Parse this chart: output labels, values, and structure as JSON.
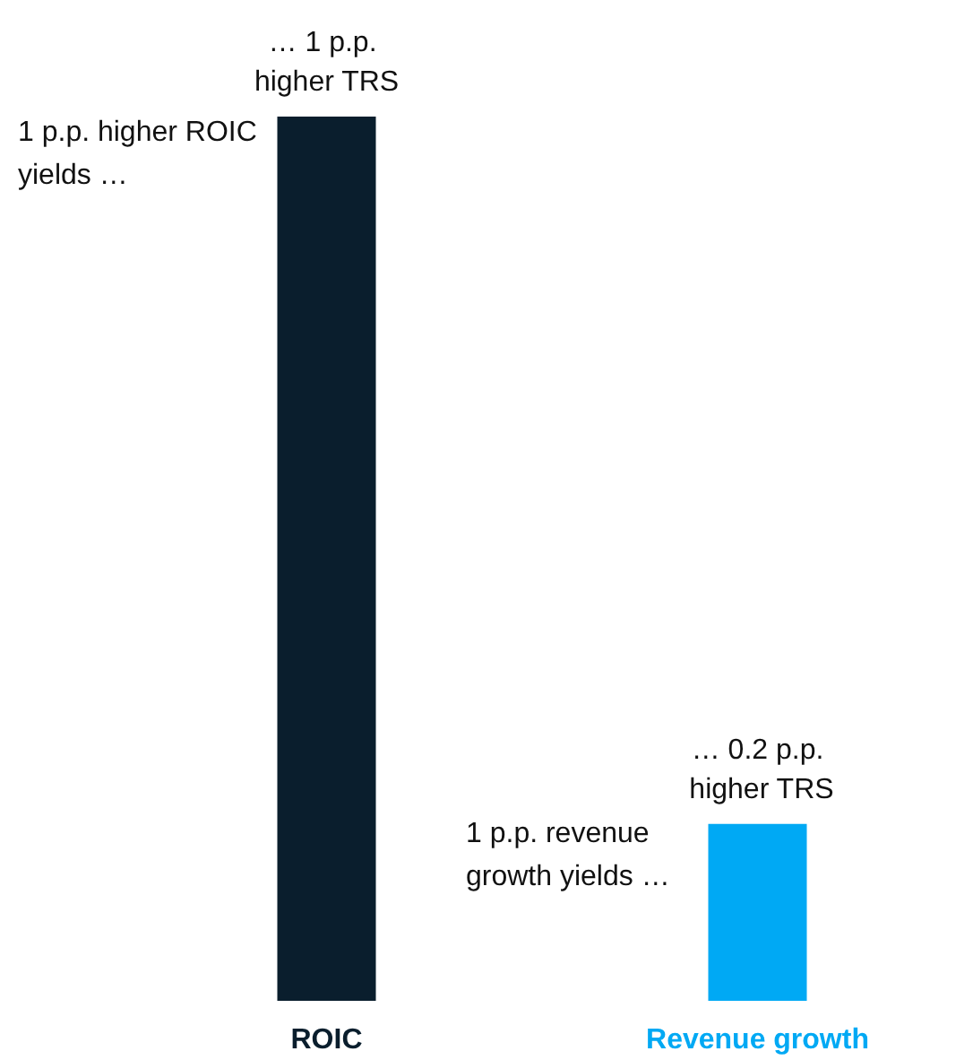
{
  "chart_data": {
    "type": "bar",
    "categories": [
      "ROIC",
      "Revenue growth"
    ],
    "values": [
      1,
      0.2
    ],
    "colors": [
      "#0a1e2d",
      "#00a9f4"
    ],
    "value_labels": [
      "… 1 p.p. higher TRS",
      "… 0.2 p.p. higher TRS"
    ],
    "annotations": [
      "1 p.p. higher ROIC yields …",
      "1 p.p. revenue growth yields …"
    ]
  }
}
